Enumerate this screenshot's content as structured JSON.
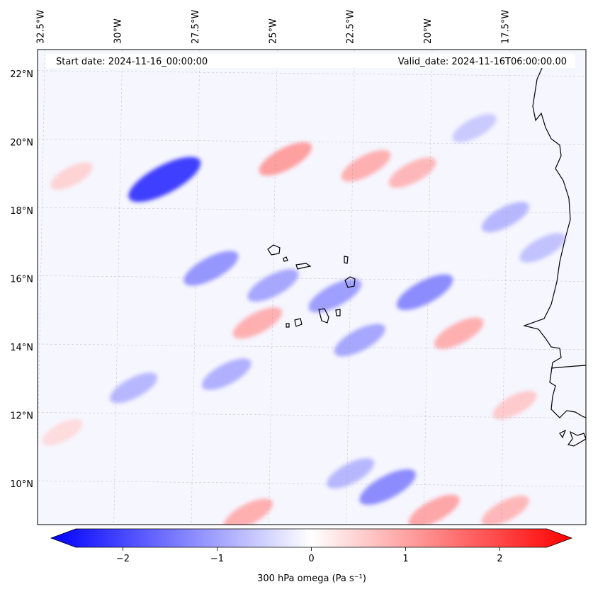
{
  "header": {
    "start_date": "Start date: 2024-11-16_00:00:00",
    "valid_date": "Valid_date: 2024-11-16T06:00:00.00"
  },
  "axes": {
    "lon_labels": [
      "32.5°W",
      "30°W",
      "27.5°W",
      "25°W",
      "22.5°W",
      "20°W",
      "17.5°W"
    ],
    "lon_values": [
      -32.5,
      -30,
      -27.5,
      -25,
      -22.5,
      -20,
      -17.5
    ],
    "lat_labels": [
      "22°N",
      "20°N",
      "18°N",
      "16°N",
      "14°N",
      "12°N",
      "10°N"
    ],
    "lat_values": [
      22,
      20,
      18,
      16,
      14,
      12,
      10
    ],
    "lon_range": [
      -32.6,
      -14.9
    ],
    "lat_range": [
      8.8,
      22.7
    ],
    "gridlines": true
  },
  "colorbar": {
    "label": "300 hPa omega (Pa s⁻¹)",
    "ticks": [
      "−2",
      "−1",
      "0",
      "1",
      "2"
    ],
    "tick_values": [
      -2,
      -1,
      0,
      1,
      2
    ],
    "range": [
      -2.5,
      2.5
    ],
    "extend": "both",
    "colormap": "bwr",
    "color_low": "#0000ff",
    "color_mid": "#ffffff",
    "color_high": "#ff0000"
  },
  "field": {
    "variable": "omega",
    "level_hpa": 300,
    "features": [
      {
        "lon": -28.5,
        "lat": 18.9,
        "value": -2.2
      },
      {
        "lon": -24.6,
        "lat": 19.5,
        "value": 1.1
      },
      {
        "lon": -22.0,
        "lat": 19.3,
        "value": 0.9
      },
      {
        "lon": -20.5,
        "lat": 19.1,
        "value": 0.8
      },
      {
        "lon": -31.5,
        "lat": 19.0,
        "value": 0.5
      },
      {
        "lon": -27.0,
        "lat": 16.3,
        "value": -1.2
      },
      {
        "lon": -25.0,
        "lat": 15.8,
        "value": -1.0
      },
      {
        "lon": -23.0,
        "lat": 15.5,
        "value": -1.1
      },
      {
        "lon": -20.1,
        "lat": 15.6,
        "value": -1.3
      },
      {
        "lon": -22.2,
        "lat": 14.2,
        "value": -1.0
      },
      {
        "lon": -25.5,
        "lat": 14.7,
        "value": 0.9
      },
      {
        "lon": -19.0,
        "lat": 14.4,
        "value": 0.9
      },
      {
        "lon": -29.5,
        "lat": 12.8,
        "value": -0.8
      },
      {
        "lon": -26.5,
        "lat": 13.2,
        "value": -0.9
      },
      {
        "lon": -21.3,
        "lat": 9.9,
        "value": -1.3
      },
      {
        "lon": -22.5,
        "lat": 10.3,
        "value": -0.8
      },
      {
        "lon": -25.8,
        "lat": 9.1,
        "value": 0.9
      },
      {
        "lon": -19.8,
        "lat": 9.2,
        "value": 1.0
      },
      {
        "lon": -17.5,
        "lat": 9.2,
        "value": 0.8
      },
      {
        "lon": -17.5,
        "lat": 17.8,
        "value": -0.8
      },
      {
        "lon": -16.3,
        "lat": 16.9,
        "value": -0.7
      },
      {
        "lon": -18.5,
        "lat": 20.4,
        "value": -0.6
      },
      {
        "lon": -17.2,
        "lat": 12.3,
        "value": 0.6
      },
      {
        "lon": -31.8,
        "lat": 11.5,
        "value": 0.4
      }
    ]
  },
  "coastline": {
    "color": "#000000"
  }
}
